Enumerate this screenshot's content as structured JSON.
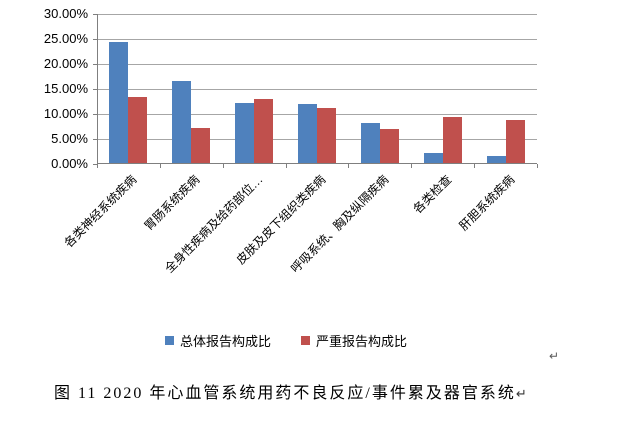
{
  "chart_data": {
    "type": "bar",
    "title": "",
    "xlabel": "",
    "ylabel": "",
    "categories": [
      "各类神经系统疾病",
      "胃肠系统疾病",
      "全身性疾病及给药部位…",
      "皮肤及皮下组织类疾病",
      "呼吸系统、胸及纵隔疾病",
      "各类检查",
      "肝胆系统疾病"
    ],
    "series": [
      {
        "name": "总体报告构成比",
        "color": "#4F81BD",
        "values": [
          24.5,
          16.7,
          12.3,
          12.1,
          8.3,
          2.3,
          1.6
        ]
      },
      {
        "name": "严重报告构成比",
        "color": "#C0504D",
        "values": [
          13.5,
          7.2,
          13.1,
          11.3,
          7.0,
          9.5,
          8.9
        ]
      }
    ],
    "ylim": [
      0,
      30
    ],
    "ytick_step": 5,
    "ytick_labels": [
      "0.00%",
      "5.00%",
      "10.00%",
      "15.00%",
      "20.00%",
      "25.00%",
      "30.00%"
    ],
    "grid": true,
    "legend_position": "bottom"
  },
  "colors": {
    "series_total": "#4F81BD",
    "series_serious": "#C0504D",
    "gridline": "#a6a6a6",
    "axis": "#7f7f7f"
  },
  "marks": {
    "after_chart": "↵"
  },
  "caption": {
    "text": "图 11  2020 年心血管系统用药不良反应/事件累及器官系统",
    "pilcrow": "↵"
  }
}
